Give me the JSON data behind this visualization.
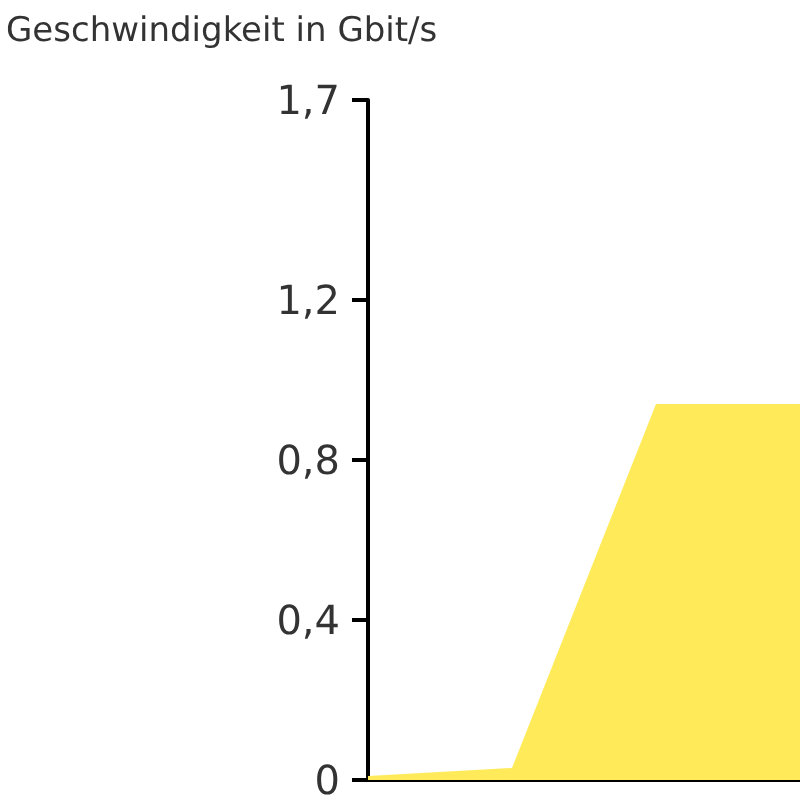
{
  "chart_data": {
    "type": "area",
    "title": "Geschwindigkeit in Gbit/s",
    "categories": [
      null,
      null,
      null,
      null
    ],
    "values": [
      0.01,
      0.03,
      0.94,
      0.94
    ],
    "color": "#ffeb5a",
    "ylim": [
      0,
      1.7
    ],
    "yticks": [
      {
        "value": 0,
        "label": "0"
      },
      {
        "value": 0.4,
        "label": "0,4"
      },
      {
        "value": 0.8,
        "label": "0,8"
      },
      {
        "value": 1.2,
        "label": "1,2"
      },
      {
        "value": 1.7,
        "label": "1,7"
      }
    ],
    "grid": false
  }
}
